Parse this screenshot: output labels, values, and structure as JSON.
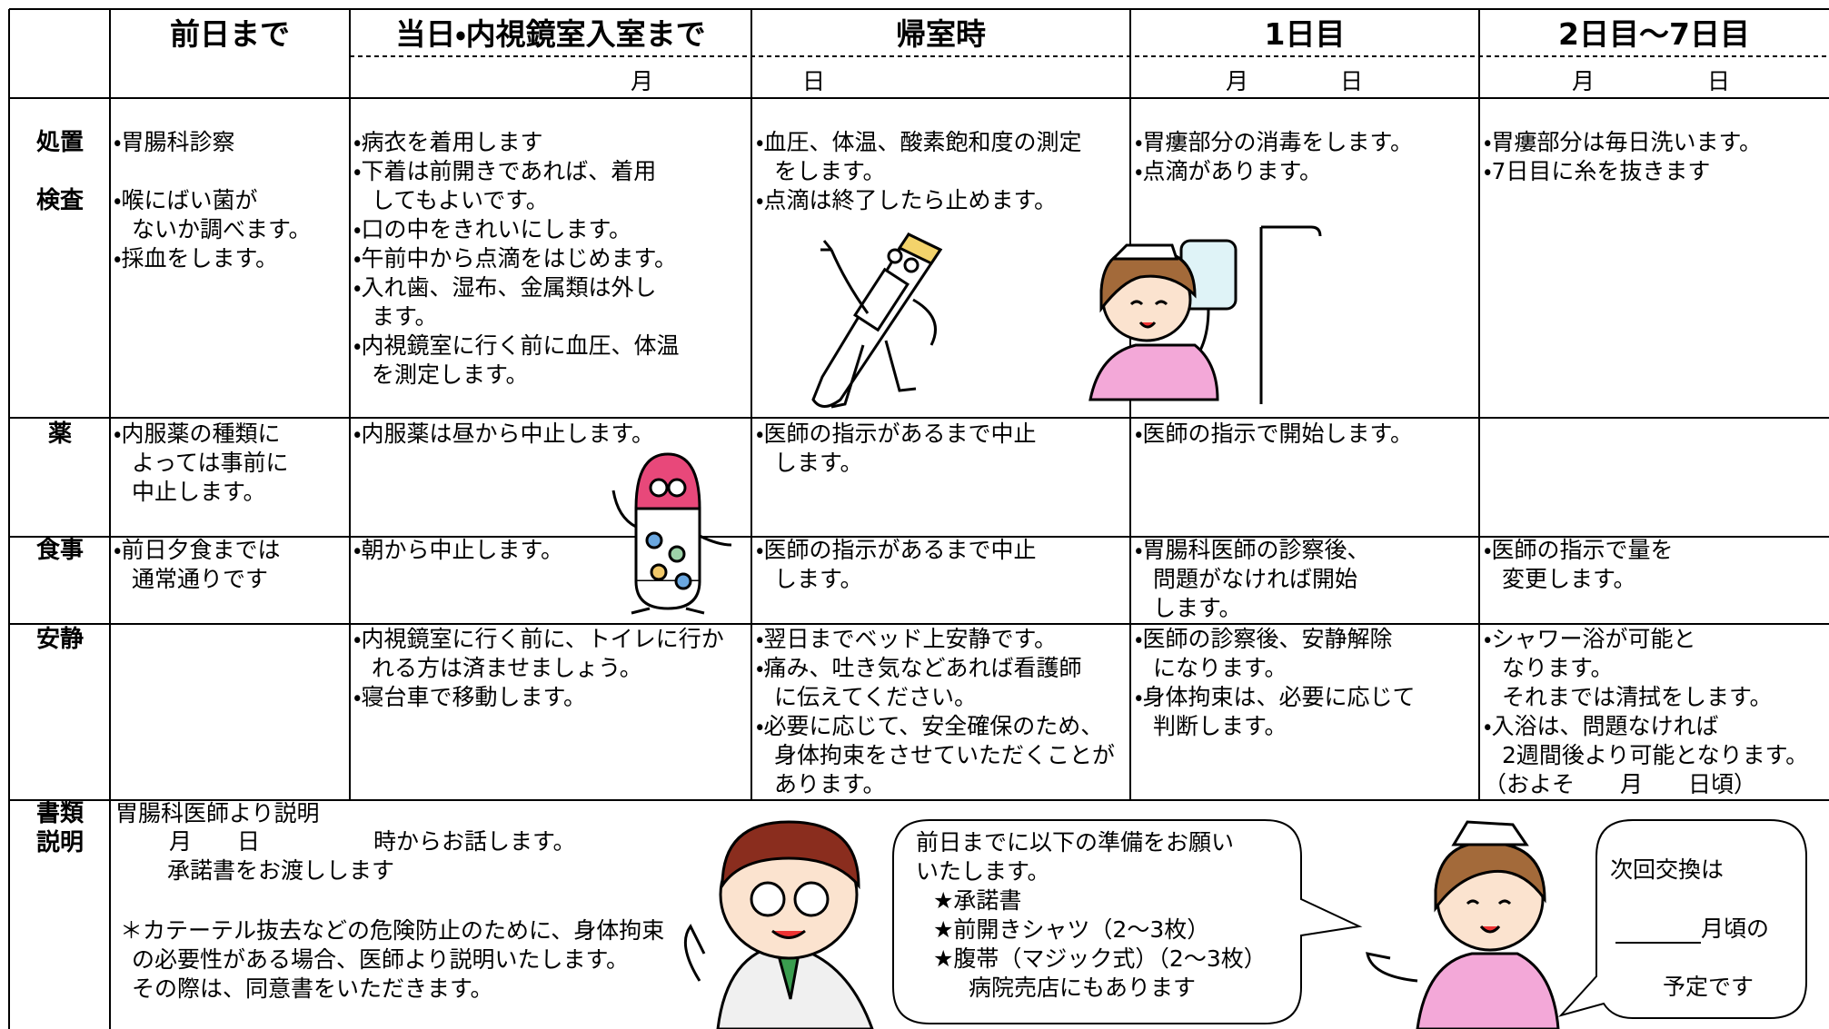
{
  "header": {
    "columns": [
      "前日まで",
      "当日・内視鏡室入室まで",
      "帰室時",
      "1日目",
      "2日目～7日目"
    ],
    "date_labels": [
      [
        "月",
        "日"
      ],
      [
        "月",
        "日"
      ],
      [
        "月",
        "日"
      ]
    ]
  },
  "rows": [
    {
      "labels": [
        "処置",
        "検査"
      ],
      "cells": [
        [
          [
            "・胃腸科診察"
          ],
          [
            "・喉にばい菌が",
            "ないか調べます。",
            "・採血をします。"
          ]
        ],
        [
          [
            "・病衣を着用します",
            "・下着は前開きであれば、着用",
            "してもよいです。",
            "・口の中をきれいにします。",
            "・午前中から点滴をはじめます。",
            "・入れ歯、湿布、金属類は外し",
            "ます。",
            "・内視鏡室に行く前に血圧、体温",
            "を測定します。"
          ]
        ],
        [
          [
            "・血圧、体温、酸素飽和度の測定",
            "をします。",
            "・点滴は終了したら止めます。"
          ]
        ],
        [
          [
            "・胃瘻部分の消毒をします。",
            "・点滴があります。"
          ]
        ],
        [
          [
            "・胃瘻部分は毎日洗います。",
            "・7日目に糸を抜きます"
          ]
        ]
      ]
    },
    {
      "labels": [
        "薬"
      ],
      "cells": [
        [
          [
            "・内服薬の種類に",
            "よっては事前に",
            "中止します。"
          ]
        ],
        [
          [
            "・内服薬は昼から中止します。"
          ]
        ],
        [
          [
            "・医師の指示があるまで中止",
            "します。"
          ]
        ],
        [
          [
            "・医師の指示で開始します。"
          ]
        ],
        []
      ]
    },
    {
      "labels": [
        "食事"
      ],
      "cells": [
        [
          [
            "・前日夕食までは",
            "通常通りです"
          ]
        ],
        [
          [
            "・朝から中止します。"
          ]
        ],
        [
          [
            "・医師の指示があるまで中止",
            "します。"
          ]
        ],
        [
          [
            "・胃腸科医師の診察後、",
            "問題がなければ開始",
            "します。"
          ]
        ],
        [
          [
            "・医師の指示で量を",
            "変更します。"
          ]
        ]
      ]
    },
    {
      "labels": [
        "安静"
      ],
      "cells": [
        [],
        [
          [
            "・内視鏡室に行く前に、トイレに行か",
            "れる方は済ませましょう。",
            "・寝台車で移動します。"
          ]
        ],
        [
          [
            "・翌日までベッド上安静です。",
            "・痛み、吐き気などあれば看護師",
            "に伝えてください。",
            "・必要に応じて、安全確保のため、",
            "身体拘束をさせていただくことが",
            "あります。"
          ]
        ],
        [
          [
            "・医師の診察後、安静解除",
            "になります。",
            "・身体拘束は、必要に応じて",
            "判断します。"
          ]
        ],
        [
          [
            "・シャワー浴が可能と",
            "なります。",
            "それまでは清拭をします。",
            "・入浴は、問題なければ",
            "2週間後より可能となります。",
            "（およそ　　月　　日頃）"
          ]
        ]
      ]
    }
  ],
  "explanation": {
    "labels": [
      "書類",
      "説明"
    ],
    "lines": [
      "胃腸科医師より説明",
      "月　　日　　　　　時からお話します。",
      "承諾書をお渡しします",
      "＊カテーテル抜去などの危険防止のために、身体拘束",
      "の必要性がある場合、医師より説明いたします。",
      "その際は、同意書をいただきます。"
    ]
  },
  "bubble_left": {
    "lines": [
      "前日までに以下の準備をお願い",
      "いたします。",
      "★承諾書",
      "★前開きシャツ（2～3枚）",
      "★腹帯（マジック式）（2～3枚）",
      "病院売店にもあります"
    ]
  },
  "bubble_right": {
    "lines": [
      "次回交換は",
      "月頃の",
      "予定です"
    ]
  }
}
